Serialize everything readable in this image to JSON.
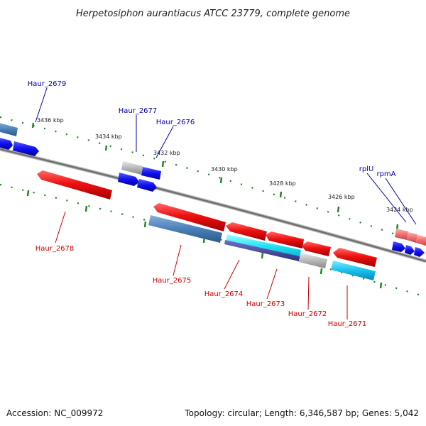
{
  "title": "Herpetosiphon aurantiacus ATCC 23779, complete genome",
  "footer": {
    "accession": "Accession: NC_009972",
    "summary": "Topology: circular; Length: 6,346,587 bp; Genes: 5,042"
  },
  "ticks": [
    "3436 kbp",
    "3434 kbp",
    "3432 kbp",
    "3430 kbp",
    "3428 kbp",
    "3426 kbp",
    "3424 kbp"
  ],
  "genes_top": [
    "Haur_2679",
    "Haur_2677",
    "Haur_2676",
    "rplU",
    "rpmA"
  ],
  "genes_bottom": [
    "Haur_2678",
    "Haur_2675",
    "Haur_2674",
    "Haur_2673",
    "Haur_2672",
    "Haur_2671"
  ],
  "colors": {
    "forward_strand": "#1010ee",
    "reverse_strand": "#ee1010",
    "top_label": "#0000aa",
    "bottom_label": "#cc0000",
    "tick_mark": "#208020",
    "backbone": "#777777"
  }
}
